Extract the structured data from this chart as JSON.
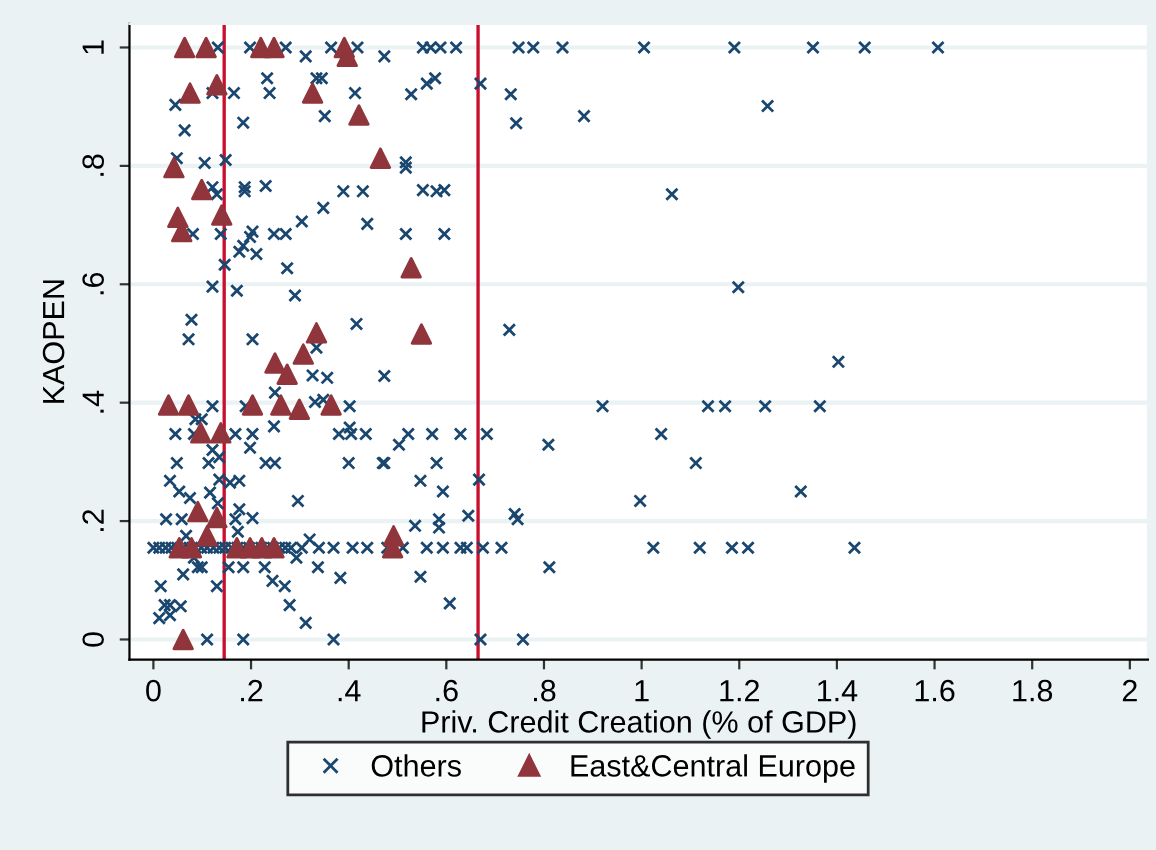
{
  "chart_data": {
    "type": "scatter",
    "xlabel": "Priv. Credit Creation (% of GDP)",
    "ylabel": "KAOPEN",
    "xlim": [
      -0.049,
      2.037
    ],
    "ylim": [
      -0.034,
      1.04
    ],
    "xticks": [
      {
        "value": 0,
        "label": "0"
      },
      {
        "value": 0.2,
        "label": ".2"
      },
      {
        "value": 0.4,
        "label": ".4"
      },
      {
        "value": 0.6,
        "label": ".6"
      },
      {
        "value": 0.8,
        "label": ".8"
      },
      {
        "value": 1,
        "label": "1"
      },
      {
        "value": 1.2,
        "label": "1.2"
      },
      {
        "value": 1.4,
        "label": "1.4"
      },
      {
        "value": 1.6,
        "label": "1.6"
      },
      {
        "value": 1.8,
        "label": "1.8"
      },
      {
        "value": 2,
        "label": "2"
      }
    ],
    "yticks": [
      {
        "value": 0,
        "label": "0"
      },
      {
        "value": 0.2,
        "label": ".2"
      },
      {
        "value": 0.4,
        "label": ".4"
      },
      {
        "value": 0.6,
        "label": ".6"
      },
      {
        "value": 0.8,
        "label": ".8"
      },
      {
        "value": 1,
        "label": "1"
      }
    ],
    "grid": "y",
    "legend": "bottom",
    "ref_lines": [
      {
        "axis": "x",
        "value": 0.145,
        "color": "#c8102e"
      },
      {
        "axis": "x",
        "value": 0.665,
        "color": "#c8102e"
      }
    ],
    "series": [
      {
        "name": "Others",
        "color": "#1a476f",
        "marker": "cross",
        "x": [
          0.132,
          0.198,
          0.271,
          0.312,
          0.364,
          0.418,
          0.473,
          0.233,
          0.334,
          0.345,
          0.045,
          0.121,
          0.165,
          0.238,
          0.413,
          0.184,
          0.351,
          0.064,
          0.048,
          0.105,
          0.148,
          0.121,
          0.13,
          0.187,
          0.187,
          0.23,
          0.389,
          0.429,
          0.348,
          0.304,
          0.438,
          0.081,
          0.138,
          0.203,
          0.198,
          0.247,
          0.271,
          0.184,
          0.176,
          0.211,
          0.146,
          0.274,
          0.121,
          0.171,
          0.29,
          0.078,
          0.416,
          0.072,
          0.203,
          0.334,
          0.326,
          0.356,
          0.249,
          0.331,
          0.348,
          0.402,
          0.121,
          0.189,
          0.086,
          0.099,
          0.247,
          0.045,
          0.083,
          0.168,
          0.203,
          0.198,
          0.38,
          0.405,
          0.435,
          0.402,
          0.121,
          0.135,
          0.048,
          0.113,
          0.23,
          0.249,
          0.4,
          0.47,
          0.135,
          0.157,
          0.176,
          0.034,
          0.053,
          0.116,
          0.075,
          0.296,
          0.132,
          0.176,
          0.203,
          0.026,
          0.058,
          0.168,
          0.173,
          0.067,
          0.32,
          0,
          0.012,
          0.025,
          0.037,
          0.049,
          0.061,
          0.074,
          0.086,
          0.098,
          0.11,
          0.123,
          0.135,
          0.147,
          0.16,
          0.172,
          0.184,
          0.196,
          0.209,
          0.221,
          0.233,
          0.245,
          0.258,
          0.27,
          0.282,
          0.304,
          0.339,
          0.369,
          0.408,
          0.438,
          0.083,
          0.293,
          0.061,
          0.154,
          0.184,
          0.228,
          0.337,
          0.091,
          0.099,
          0.244,
          0.269,
          0.383,
          0.015,
          0.13,
          0.023,
          0.034,
          0.056,
          0.012,
          0.034,
          0.279,
          0.312,
          0.11,
          0.184,
          0.369,
          0.552,
          0.568,
          0.588,
          0.62,
          0.748,
          0.778,
          0.838,
          1.005,
          1.19,
          0.56,
          0.577,
          0.528,
          0.67,
          0.732,
          1.258,
          0.743,
          0.882,
          0.517,
          0.517,
          0.552,
          0.58,
          0.596,
          1.062,
          0.517,
          0.596,
          1.198,
          0.729,
          0.473,
          0.92,
          1.136,
          1.171,
          1.253,
          0.522,
          0.503,
          0.571,
          0.629,
          0.683,
          0.809,
          1.04,
          0.473,
          0.58,
          1.111,
          0.547,
          0.593,
          0.667,
          0.997,
          0.645,
          0.536,
          0.585,
          0.585,
          0.74,
          0.746,
          0.479,
          0.511,
          0.56,
          0.593,
          0.629,
          0.642,
          0.675,
          0.713,
          1.024,
          1.119,
          1.185,
          1.218,
          0.547,
          0.811,
          0.607,
          0.67,
          0.757,
          1.351,
          1.457,
          1.607,
          1.403,
          1.365,
          1.326,
          1.436
        ],
        "values": [
          1.0,
          1.0,
          1.0,
          0.985,
          1.0,
          1.0,
          0.985,
          0.948,
          0.948,
          0.948,
          0.903,
          0.923,
          0.923,
          0.923,
          0.923,
          0.873,
          0.884,
          0.86,
          0.813,
          0.805,
          0.81,
          0.764,
          0.752,
          0.764,
          0.757,
          0.766,
          0.757,
          0.757,
          0.729,
          0.706,
          0.702,
          0.685,
          0.685,
          0.689,
          0.68,
          0.685,
          0.685,
          0.665,
          0.655,
          0.651,
          0.633,
          0.627,
          0.596,
          0.589,
          0.581,
          0.54,
          0.533,
          0.507,
          0.507,
          0.493,
          0.446,
          0.442,
          0.417,
          0.401,
          0.405,
          0.394,
          0.394,
          0.394,
          0.372,
          0.372,
          0.36,
          0.347,
          0.347,
          0.347,
          0.347,
          0.324,
          0.347,
          0.347,
          0.347,
          0.358,
          0.32,
          0.308,
          0.298,
          0.298,
          0.298,
          0.298,
          0.298,
          0.298,
          0.27,
          0.265,
          0.268,
          0.268,
          0.25,
          0.248,
          0.239,
          0.234,
          0.23,
          0.22,
          0.205,
          0.203,
          0.203,
          0.203,
          0.182,
          0.175,
          0.169,
          0.155,
          0.155,
          0.155,
          0.155,
          0.155,
          0.155,
          0.155,
          0.155,
          0.155,
          0.155,
          0.155,
          0.155,
          0.155,
          0.155,
          0.155,
          0.155,
          0.155,
          0.155,
          0.155,
          0.155,
          0.155,
          0.155,
          0.155,
          0.155,
          0.155,
          0.155,
          0.155,
          0.155,
          0.155,
          0.138,
          0.138,
          0.11,
          0.122,
          0.122,
          0.122,
          0.122,
          0.122,
          0.122,
          0.099,
          0.09,
          0.104,
          0.09,
          0.09,
          0.058,
          0.058,
          0.056,
          0.036,
          0.041,
          0.058,
          0.028,
          0,
          0,
          0,
          1.0,
          1.0,
          1.0,
          1.0,
          1.0,
          1.0,
          1.0,
          1.0,
          1.0,
          0.939,
          0.948,
          0.921,
          0.939,
          0.921,
          0.901,
          0.872,
          0.884,
          0.806,
          0.797,
          0.759,
          0.757,
          0.759,
          0.752,
          0.685,
          0.685,
          0.595,
          0.523,
          0.445,
          0.394,
          0.394,
          0.394,
          0.394,
          0.347,
          0.329,
          0.347,
          0.347,
          0.347,
          0.329,
          0.347,
          0.298,
          0.298,
          0.298,
          0.268,
          0.25,
          0.27,
          0.234,
          0.209,
          0.192,
          0.203,
          0.189,
          0.212,
          0.203,
          0.155,
          0.155,
          0.155,
          0.155,
          0.155,
          0.155,
          0.155,
          0.155,
          0.155,
          0.155,
          0.155,
          0.155,
          0.106,
          0.122,
          0.061,
          0,
          0,
          1.0,
          1.0,
          1.0,
          0.469,
          0.394,
          0.25,
          0.155
        ]
      },
      {
        "name": "East&Central Europe",
        "color": "#90353b",
        "marker": "triangle",
        "x": [
          0.064,
          0.108,
          0.22,
          0.247,
          0.391,
          0.397,
          0.075,
          0.13,
          0.326,
          0.421,
          0.042,
          0.465,
          0.099,
          0.05,
          0.14,
          0.058,
          0.334,
          0.307,
          0.249,
          0.274,
          0.031,
          0.072,
          0.203,
          0.261,
          0.299,
          0.364,
          0.097,
          0.138,
          0.091,
          0.13,
          0.11,
          0.053,
          0.078,
          0.171,
          0.198,
          0.222,
          0.247,
          0.492,
          0.49,
          0.061,
          0.528,
          0.549
        ],
        "values": [
          1.0,
          1.0,
          1.0,
          1.0,
          1.0,
          0.985,
          0.923,
          0.937,
          0.923,
          0.886,
          0.797,
          0.813,
          0.76,
          0.713,
          0.717,
          0.689,
          0.518,
          0.482,
          0.467,
          0.448,
          0.396,
          0.396,
          0.396,
          0.396,
          0.389,
          0.396,
          0.349,
          0.349,
          0.216,
          0.206,
          0.175,
          0.155,
          0.155,
          0.155,
          0.155,
          0.155,
          0.155,
          0.175,
          0.155,
          0,
          0.628,
          0.516
        ]
      }
    ]
  }
}
